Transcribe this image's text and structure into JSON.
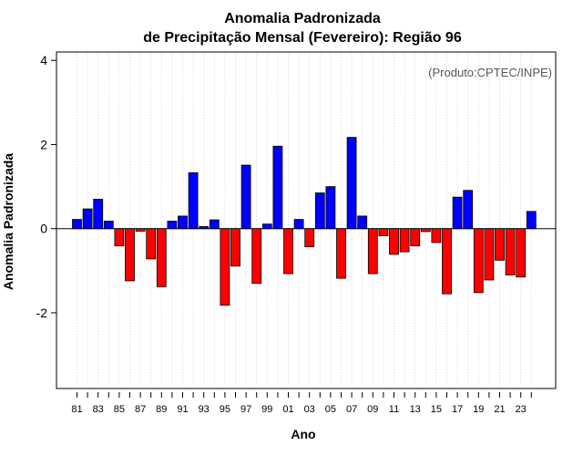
{
  "chart_data": {
    "type": "bar",
    "title": "Anomalia Padronizada",
    "subtitle": "de Precipitação Mensal (Fevereiro): Região 96",
    "xlabel": "Ano",
    "ylabel": "Anomalia Padronizada",
    "annotation": "(Produto:CPTEC/INPE)",
    "ylim": [
      -3.8,
      4.2
    ],
    "yticks": [
      -2,
      0,
      2,
      4
    ],
    "ytick_labels": [
      "-2",
      "0",
      "2",
      "4"
    ],
    "x_tick_labels": [
      "81",
      "83",
      "85",
      "87",
      "89",
      "91",
      "93",
      "95",
      "97",
      "99",
      "01",
      "03",
      "05",
      "07",
      "09",
      "11",
      "13",
      "15",
      "17",
      "19",
      "21",
      "23"
    ],
    "grid": "vertical dotted",
    "colors": {
      "positive": "#0000ff",
      "negative": "#ff0000",
      "outline": "#000000"
    },
    "categories": [
      "1981",
      "1982",
      "1983",
      "1984",
      "1985",
      "1986",
      "1987",
      "1988",
      "1989",
      "1990",
      "1991",
      "1992",
      "1993",
      "1994",
      "1995",
      "1996",
      "1997",
      "1998",
      "1999",
      "2000",
      "2001",
      "2002",
      "2003",
      "2004",
      "2005",
      "2006",
      "2007",
      "2008",
      "2009",
      "2010",
      "2011",
      "2012",
      "2013",
      "2014",
      "2015",
      "2016",
      "2017",
      "2018",
      "2019",
      "2020",
      "2021",
      "2022",
      "2023",
      "2024"
    ],
    "values": [
      0.22,
      0.47,
      0.7,
      0.18,
      -0.41,
      -1.24,
      -0.06,
      -0.72,
      -1.38,
      0.18,
      0.3,
      1.33,
      0.05,
      0.21,
      -1.82,
      -0.89,
      1.51,
      -1.3,
      0.11,
      1.96,
      -1.07,
      0.22,
      -0.43,
      0.85,
      1.0,
      -1.18,
      2.17,
      0.3,
      -1.07,
      -0.17,
      -0.61,
      -0.55,
      -0.41,
      -0.07,
      -0.33,
      -1.55,
      0.75,
      0.91,
      -1.52,
      -1.22,
      -0.75,
      -1.1,
      -1.15,
      0.41
    ]
  }
}
